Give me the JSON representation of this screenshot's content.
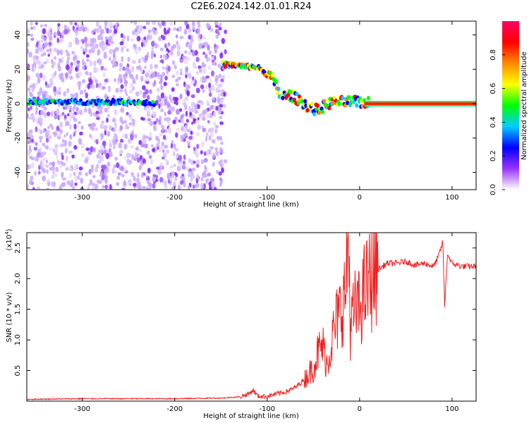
{
  "title": "C2E6.2024.142.01.01.R24",
  "chart_data": [
    {
      "type": "heatmap",
      "xlabel": "Height of straight line (km)",
      "ylabel": "Frequency (Hz)",
      "xlim": [
        -360,
        126
      ],
      "ylim": [
        -50,
        48
      ],
      "x_ticks": [
        -300,
        -200,
        -100,
        0,
        100
      ],
      "x_tick_labels": [
        "-300",
        "-200",
        "-100",
        "0",
        "100"
      ],
      "y_ticks": [
        40,
        20,
        0,
        -20,
        -40
      ],
      "y_tick_labels": [
        "40",
        "20",
        "0",
        "-20",
        "-40"
      ],
      "noise_region_x": [
        -360,
        -145
      ],
      "signal_trace": {
        "x": [
          -360,
          -330,
          -300,
          -270,
          -240,
          -222,
          -150,
          -130,
          -110,
          -95,
          -85,
          -75,
          -65,
          -55,
          -45,
          -35,
          -25,
          -15,
          0,
          20,
          60,
          90,
          126
        ],
        "y": [
          1,
          1,
          1,
          1,
          1,
          0,
          23,
          22,
          21,
          15,
          4,
          5,
          2,
          -2,
          -4,
          0,
          1,
          1,
          1,
          0,
          0,
          0,
          0
        ]
      },
      "colorbar": {
        "label": "Normalized spectral amplitude",
        "range": [
          0,
          1
        ],
        "ticks": [
          0.0,
          0.2,
          0.4,
          0.6,
          0.8
        ],
        "tick_labels": [
          "0.0",
          "0.2",
          "0.4",
          "0.6",
          "0.8"
        ],
        "colors": [
          "#ffffff",
          "#9933ff",
          "#0000ff",
          "#00ccff",
          "#00ff00",
          "#ffff00",
          "#ff8800",
          "#ff0000",
          "#ff0066"
        ]
      },
      "grid": false
    },
    {
      "type": "line",
      "xlabel": "Height of straight line (km)",
      "ylabel": "SNR (10 * v/v)",
      "y_multiplier": "(x10",
      "y_multiplier_exp": "4",
      "xlim": [
        -360,
        126
      ],
      "ylim": [
        0,
        2.75
      ],
      "x_ticks": [
        -300,
        -200,
        -100,
        0,
        100
      ],
      "x_tick_labels": [
        "-300",
        "-200",
        "-100",
        "0",
        "100"
      ],
      "y_ticks": [
        0.5,
        1.0,
        1.5,
        2.0,
        2.5
      ],
      "y_tick_labels": [
        "0.5",
        "1.0",
        "1.5",
        "2.0",
        "2.5"
      ],
      "series": [
        {
          "color": "#ee2222",
          "x": [
            -360,
            -300,
            -250,
            -200,
            -150,
            -130,
            -120,
            -115,
            -110,
            -100,
            -90,
            -80,
            -70,
            -60,
            -50,
            -45,
            -40,
            -35,
            -30,
            -25,
            -20,
            -15,
            -12,
            -10,
            -5,
            0,
            5,
            10,
            15,
            20,
            25,
            30,
            40,
            50,
            60,
            70,
            80,
            85,
            90,
            92,
            95,
            100,
            110,
            120,
            126
          ],
          "y": [
            0.03,
            0.04,
            0.04,
            0.04,
            0.05,
            0.07,
            0.12,
            0.18,
            0.08,
            0.08,
            0.12,
            0.15,
            0.22,
            0.35,
            0.55,
            0.8,
            0.9,
            0.6,
            1.0,
            1.3,
            1.5,
            1.8,
            2.7,
            1.2,
            1.5,
            1.5,
            1.8,
            1.95,
            2.05,
            2.15,
            2.2,
            2.25,
            2.25,
            2.28,
            2.22,
            2.25,
            2.2,
            2.35,
            2.6,
            1.55,
            2.4,
            2.25,
            2.2,
            2.2,
            2.2
          ]
        }
      ],
      "grid": false
    }
  ]
}
